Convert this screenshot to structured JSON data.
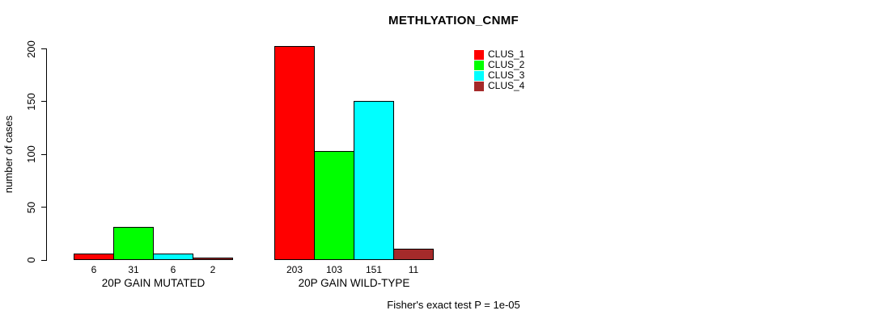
{
  "chart_data": {
    "type": "bar",
    "title": "METHLYATION_CNMF",
    "ylabel": "number of cases",
    "xlabel": "",
    "ylim": [
      0,
      200
    ],
    "yticks": [
      0,
      50,
      100,
      150,
      200
    ],
    "grid": false,
    "legend_position": "top-right",
    "bar_value_labels": true,
    "categories": [
      "20P GAIN MUTATED",
      "20P GAIN WILD-TYPE"
    ],
    "series": [
      {
        "name": "CLUS_1",
        "color": "#FF0000",
        "values": [
          6,
          203
        ]
      },
      {
        "name": "CLUS_2",
        "color": "#00FF00",
        "values": [
          31,
          103
        ]
      },
      {
        "name": "CLUS_3",
        "color": "#00FFFF",
        "values": [
          6,
          151
        ]
      },
      {
        "name": "CLUS_4",
        "color": "#A52A2A",
        "values": [
          2,
          11
        ]
      }
    ],
    "annotation": "Fisher's exact test P = 1e-05"
  },
  "colors": {
    "background": "#FFFFFF",
    "axis": "#000000",
    "text": "#000000"
  }
}
